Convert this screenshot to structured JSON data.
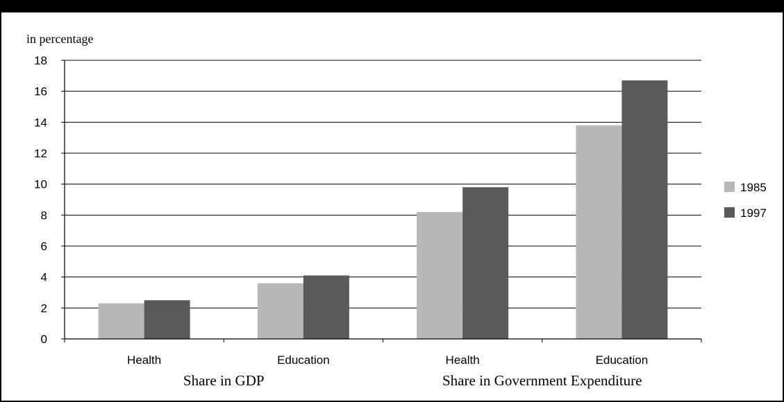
{
  "chart_data": {
    "type": "bar",
    "title": "",
    "ylabel": "in percentage",
    "ylim": [
      0,
      18
    ],
    "yticks": [
      0,
      2,
      4,
      6,
      8,
      10,
      12,
      14,
      16,
      18
    ],
    "categories": [
      "Health",
      "Education",
      "Health",
      "Education"
    ],
    "groups": [
      {
        "label": "Share in GDP",
        "categories": [
          "Health",
          "Education"
        ]
      },
      {
        "label": "Share in Government Expenditure",
        "categories": [
          "Health",
          "Education"
        ]
      }
    ],
    "series": [
      {
        "name": "1985",
        "color": "#b8b8b8",
        "values": [
          2.3,
          3.6,
          8.2,
          13.8
        ]
      },
      {
        "name": "1997",
        "color": "#5a5a5a",
        "values": [
          2.5,
          4.1,
          9.8,
          16.7
        ]
      }
    ],
    "grid": true,
    "legend": "right"
  }
}
